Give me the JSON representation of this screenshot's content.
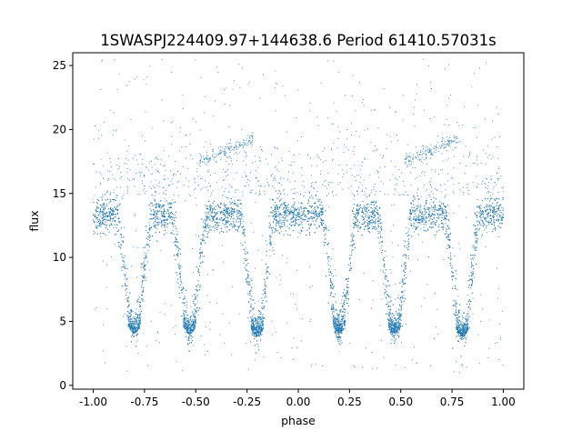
{
  "chart_data": {
    "type": "scatter",
    "title": "1SWASPJ224409.97+144638.6 Period 61410.57031s",
    "xlabel": "phase",
    "ylabel": "flux",
    "xlim": [
      -1.1,
      1.1
    ],
    "ylim": [
      -0.3,
      26.0
    ],
    "xticks": [
      "-1.00",
      "-0.75",
      "-0.50",
      "-0.25",
      "0.00",
      "0.25",
      "0.50",
      "0.75",
      "1.00"
    ],
    "yticks": [
      "0",
      "5",
      "10",
      "15",
      "20",
      "25"
    ],
    "grid": false,
    "marker_color": "#1f77b4",
    "baseline_flux": 13.3,
    "eclipses": [
      {
        "center": -0.8,
        "min_flux": 4.3
      },
      {
        "center": -0.53,
        "min_flux": 4.2
      },
      {
        "center": -0.2,
        "min_flux": 4.0
      },
      {
        "center": 0.2,
        "min_flux": 4.3
      },
      {
        "center": 0.47,
        "min_flux": 4.2
      },
      {
        "center": 0.8,
        "min_flux": 4.0
      }
    ],
    "arc_features": [
      {
        "phase_range": [
          -0.48,
          -0.22
        ],
        "flux_range": [
          17.5,
          19.2
        ]
      },
      {
        "phase_range": [
          0.52,
          0.78
        ],
        "flux_range": [
          17.5,
          19.2
        ]
      }
    ]
  }
}
